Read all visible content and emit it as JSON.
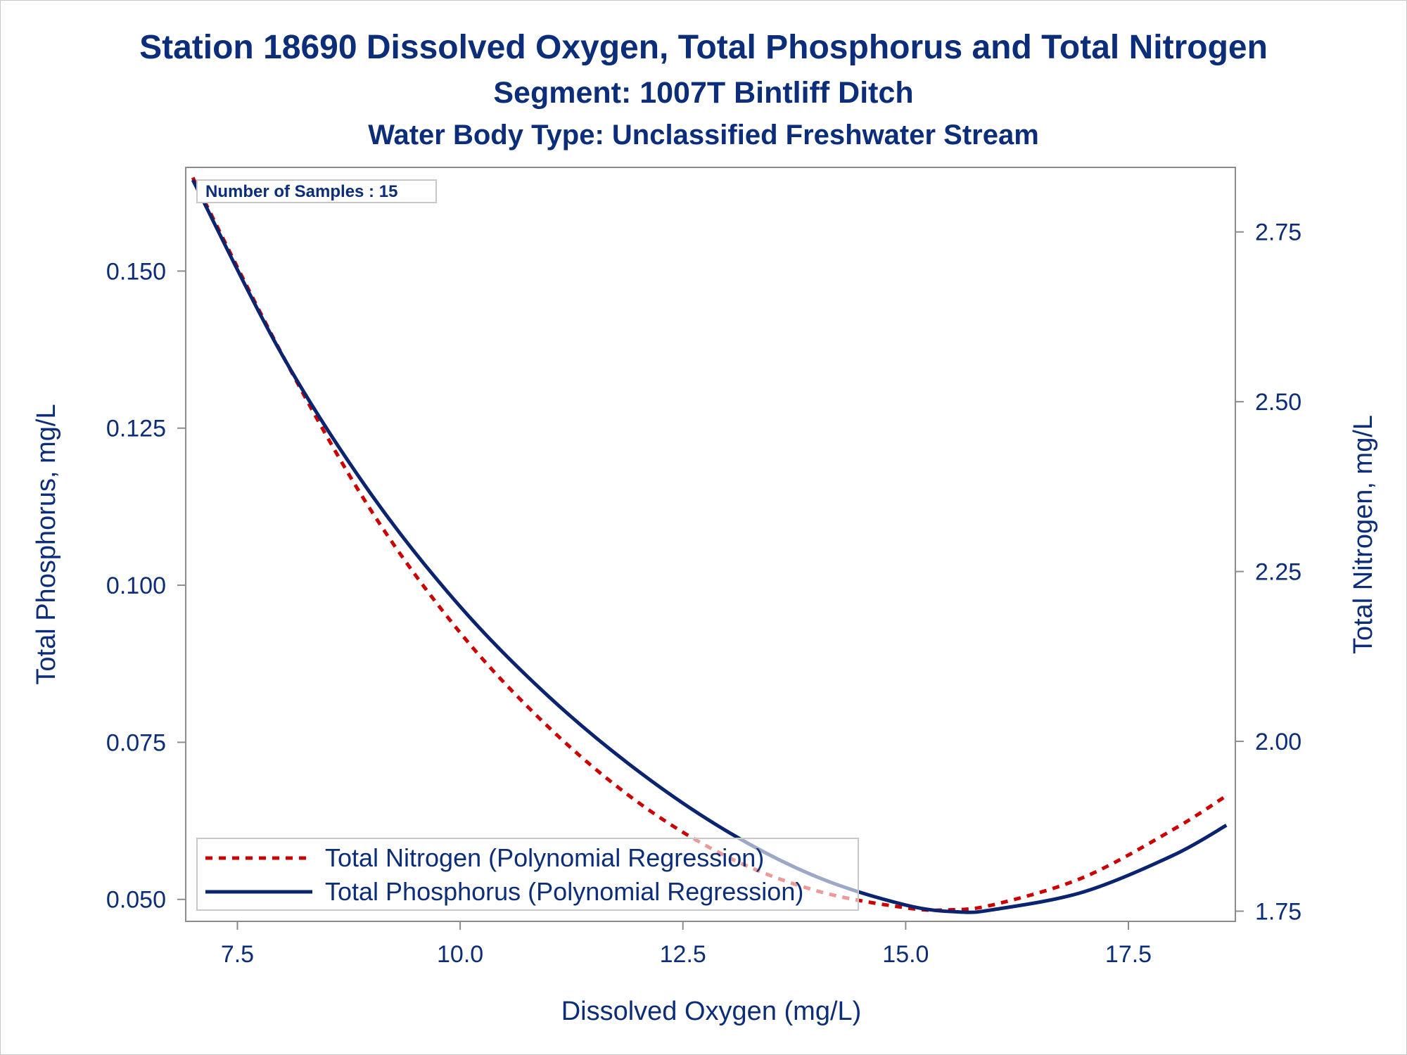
{
  "titles": {
    "line1": "Station 18690  Dissolved Oxygen, Total Phosphorus and Total Nitrogen",
    "line2": "Segment: 1007T  Bintliff Ditch",
    "line3": "Water Body Type: Unclassified Freshwater Stream"
  },
  "colors": {
    "text": "#0b2d7a",
    "nitrogen": "#cc0000",
    "phosphorus": "#0b2470",
    "axis": "#8c8c8c"
  },
  "chart_data": {
    "type": "line",
    "annotation": "Number of Samples : 15",
    "xlabel": "Dissolved Oxygen (mg/L)",
    "ylabel_left": "Total Phosphorus, mg/L",
    "ylabel_right": "Total Nitrogen, mg/L",
    "xlim": [
      6.92,
      18.7
    ],
    "ylim_left": [
      0.0465,
      0.1665
    ],
    "ylim_right": [
      1.735,
      2.845
    ],
    "x_ticks": [
      "7.5",
      "10.0",
      "12.5",
      "15.0",
      "17.5"
    ],
    "y_left_ticks": [
      "0.050",
      "0.075",
      "0.100",
      "0.125",
      "0.150"
    ],
    "y_right_ticks": [
      "1.75",
      "2.00",
      "2.25",
      "2.50",
      "2.75"
    ],
    "grid": false,
    "legend_position": "bottom-left",
    "series": [
      {
        "name": "Total Nitrogen (Polynomial Regression)",
        "axis": "right",
        "style": "dashed",
        "x": [
          7.0,
          8.0,
          9.0,
          10.0,
          11.0,
          12.0,
          13.0,
          14.0,
          15.0,
          15.5,
          16.0,
          17.0,
          18.0,
          18.6
        ],
        "y": [
          2.83,
          2.57,
          2.34,
          2.16,
          2.02,
          1.91,
          1.83,
          1.78,
          1.755,
          1.752,
          1.76,
          1.8,
          1.87,
          1.92
        ]
      },
      {
        "name": "Total Phosphorus (Polynomial Regression)",
        "axis": "left",
        "style": "solid",
        "x": [
          7.0,
          8.0,
          9.0,
          10.0,
          11.0,
          12.0,
          13.0,
          14.0,
          15.0,
          15.6,
          16.0,
          17.0,
          18.0,
          18.6
        ],
        "y": [
          0.1645,
          0.1367,
          0.1145,
          0.0966,
          0.0822,
          0.0704,
          0.0608,
          0.0536,
          0.0491,
          0.048,
          0.0484,
          0.0512,
          0.057,
          0.0618
        ]
      }
    ]
  }
}
